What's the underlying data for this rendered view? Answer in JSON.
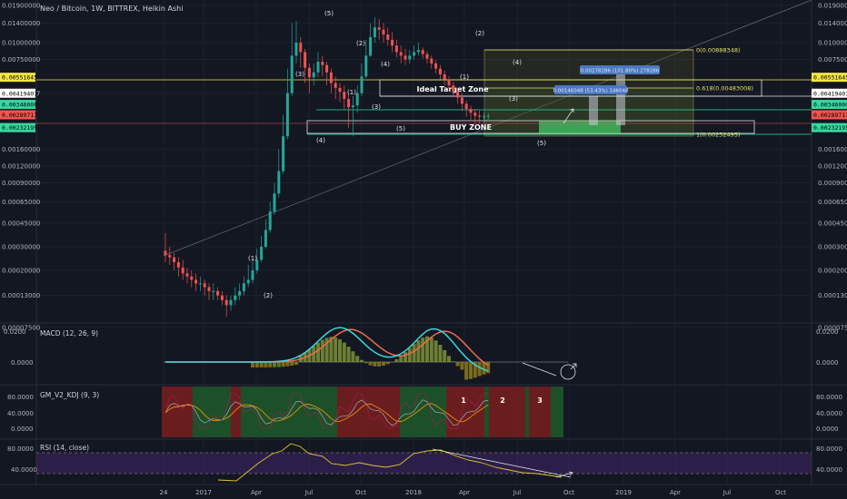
{
  "title": "Neo / Bitcoin, 1W, BITTREX, Heikin Ashi",
  "main_axis": {
    "left_ticks": [
      "0.01900000",
      "0.01400000",
      "0.01000000",
      "0.00750000",
      "0.00419407",
      "0.00160000",
      "0.00120000",
      "0.00090000",
      "0.00065000",
      "0.00045000",
      "0.00030000",
      "0.00020000",
      "0.00013000",
      "0.00007500"
    ],
    "right_ticks": [
      "0.01900000",
      "0.01400000",
      "0.01000000",
      "0.00750000",
      "0.00419407",
      "0.00160000",
      "0.00120000",
      "0.00090000",
      "0.00065000",
      "0.00045000",
      "0.00030000",
      "0.00020000",
      "0.00013000",
      "0.00007500"
    ],
    "scale": "log"
  },
  "price_badges": [
    {
      "label": "0.00551645",
      "color": "#f5e642",
      "text_color": "#000000",
      "price": 0.00551645
    },
    {
      "label": "0.00419407",
      "color": "#ffffff",
      "text_color": "#000000",
      "price": 0.00419407
    },
    {
      "label": "0.00346000",
      "color": "#37d8a0",
      "text_color": "#000000",
      "price": 0.00346
    },
    {
      "label": "0.00289717",
      "color": "#f0554a",
      "text_color": "#000000",
      "price": 0.00289717
    },
    {
      "label": "0.00232195",
      "color": "#37d8a0",
      "text_color": "#000000",
      "price": 0.00232195
    }
  ],
  "fib_labels": {
    "top": "0(0.00888348)",
    "mid": "0.618(0.00483008)",
    "bottom": "1(0.00232495)"
  },
  "zones": {
    "target": "Ideal Target Zone",
    "buy": "BUY ZONE"
  },
  "measure_boxes": {
    "upper": "0.00278286 (101.80%) 278286",
    "lower": "0.00146048 (53.43%) 146048"
  },
  "waves": [
    "(5)",
    "(3)",
    "(2)",
    "(4)",
    "(1)",
    "(3)",
    "(4)",
    "(5)",
    "(2)",
    "(1)",
    "(4)",
    "(3)",
    "(5)",
    "(1)",
    "(2)"
  ],
  "macd": {
    "title": "MACD (12, 26, 9)",
    "ticks": [
      "0.0200",
      "0.0000"
    ]
  },
  "kdj": {
    "title": "GM_V2_KDJ (9, 3)",
    "ticks": [
      "80.0000",
      "40.0000",
      "0.0000"
    ],
    "markers": [
      "1",
      "2",
      "3"
    ]
  },
  "rsi": {
    "title": "RSI (14, close)",
    "ticks": [
      "80.0000",
      "40.0000"
    ]
  },
  "time_axis": [
    "24",
    "2017",
    "Apr",
    "Jul",
    "Oct",
    "2018",
    "Apr",
    "Jul",
    "Oct",
    "2019",
    "Apr",
    "Jul",
    "Oct"
  ],
  "colors": {
    "background": "#131722",
    "up": "#26a69a",
    "down": "#ef5350",
    "grid": "#1e222d"
  },
  "chart_data": {
    "type": "candlestick",
    "title": "Neo / Bitcoin, 1W, BITTREX, Heikin Ashi",
    "y_scale": "log",
    "ylim": [
      7.5e-05,
      0.019
    ],
    "candles": [
      {
        "o": 0.00028,
        "c": 0.00026,
        "h": 0.00038,
        "l": 0.00023
      },
      {
        "o": 0.00026,
        "c": 0.00025,
        "h": 0.0003,
        "l": 0.00022
      },
      {
        "o": 0.00025,
        "c": 0.00023,
        "h": 0.00027,
        "l": 0.0002
      },
      {
        "o": 0.00023,
        "c": 0.00021,
        "h": 0.00025,
        "l": 0.00018
      },
      {
        "o": 0.00021,
        "c": 0.00019,
        "h": 0.00024,
        "l": 0.00017
      },
      {
        "o": 0.00019,
        "c": 0.00018,
        "h": 0.00021,
        "l": 0.00016
      },
      {
        "o": 0.00018,
        "c": 0.00017,
        "h": 0.0002,
        "l": 0.00015
      },
      {
        "o": 0.00017,
        "c": 0.00016,
        "h": 0.00019,
        "l": 0.00014
      },
      {
        "o": 0.00016,
        "c": 0.00016,
        "h": 0.00018,
        "l": 0.00014
      },
      {
        "o": 0.00016,
        "c": 0.00015,
        "h": 0.00017,
        "l": 0.00013
      },
      {
        "o": 0.00015,
        "c": 0.00014,
        "h": 0.00016,
        "l": 0.00012
      },
      {
        "o": 0.00014,
        "c": 0.00014,
        "h": 0.00016,
        "l": 0.00012
      },
      {
        "o": 0.00014,
        "c": 0.00013,
        "h": 0.00015,
        "l": 0.00012
      },
      {
        "o": 0.00013,
        "c": 0.00012,
        "h": 0.00014,
        "l": 0.00011
      },
      {
        "o": 0.00012,
        "c": 0.00011,
        "h": 0.00013,
        "l": 9e-05
      },
      {
        "o": 0.00011,
        "c": 0.00012,
        "h": 0.00013,
        "l": 0.0001
      },
      {
        "o": 0.00012,
        "c": 0.00013,
        "h": 0.00015,
        "l": 0.00011
      },
      {
        "o": 0.00013,
        "c": 0.00014,
        "h": 0.00016,
        "l": 0.00012
      },
      {
        "o": 0.00014,
        "c": 0.00016,
        "h": 0.00018,
        "l": 0.00013
      },
      {
        "o": 0.00016,
        "c": 0.00017,
        "h": 0.00022,
        "l": 0.00015
      },
      {
        "o": 0.00017,
        "c": 0.0002,
        "h": 0.00024,
        "l": 0.00016
      },
      {
        "o": 0.0002,
        "c": 0.00024,
        "h": 0.00029,
        "l": 0.00019
      },
      {
        "o": 0.00024,
        "c": 0.0003,
        "h": 0.00036,
        "l": 0.00023
      },
      {
        "o": 0.0003,
        "c": 0.0004,
        "h": 0.00048,
        "l": 0.00029
      },
      {
        "o": 0.0004,
        "c": 0.00055,
        "h": 0.00065,
        "l": 0.00038
      },
      {
        "o": 0.00055,
        "c": 0.00075,
        "h": 0.0009,
        "l": 0.00052
      },
      {
        "o": 0.00075,
        "c": 0.0011,
        "h": 0.0016,
        "l": 0.0007
      },
      {
        "o": 0.0011,
        "c": 0.002,
        "h": 0.0029,
        "l": 0.00105
      },
      {
        "o": 0.002,
        "c": 0.0042,
        "h": 0.0064,
        "l": 0.0019
      },
      {
        "o": 0.0042,
        "c": 0.008,
        "h": 0.014,
        "l": 0.004
      },
      {
        "o": 0.008,
        "c": 0.01,
        "h": 0.0145,
        "l": 0.007
      },
      {
        "o": 0.01,
        "c": 0.0085,
        "h": 0.011,
        "l": 0.0065
      },
      {
        "o": 0.0085,
        "c": 0.0065,
        "h": 0.009,
        "l": 0.005
      },
      {
        "o": 0.0065,
        "c": 0.0055,
        "h": 0.007,
        "l": 0.0042
      },
      {
        "o": 0.0055,
        "c": 0.006,
        "h": 0.007,
        "l": 0.0048
      },
      {
        "o": 0.006,
        "c": 0.0072,
        "h": 0.0085,
        "l": 0.0055
      },
      {
        "o": 0.0072,
        "c": 0.0068,
        "h": 0.008,
        "l": 0.0056
      },
      {
        "o": 0.0068,
        "c": 0.006,
        "h": 0.0072,
        "l": 0.0048
      },
      {
        "o": 0.006,
        "c": 0.005,
        "h": 0.0064,
        "l": 0.0042
      },
      {
        "o": 0.005,
        "c": 0.0046,
        "h": 0.0056,
        "l": 0.0038
      },
      {
        "o": 0.0046,
        "c": 0.0043,
        "h": 0.005,
        "l": 0.0036
      },
      {
        "o": 0.0043,
        "c": 0.0038,
        "h": 0.0048,
        "l": 0.0032
      },
      {
        "o": 0.0038,
        "c": 0.0033,
        "h": 0.0042,
        "l": 0.0023
      },
      {
        "o": 0.0033,
        "c": 0.0034,
        "h": 0.004,
        "l": 0.002
      },
      {
        "o": 0.0034,
        "c": 0.0042,
        "h": 0.0048,
        "l": 0.003
      },
      {
        "o": 0.0042,
        "c": 0.0056,
        "h": 0.007,
        "l": 0.004
      },
      {
        "o": 0.0056,
        "c": 0.008,
        "h": 0.0105,
        "l": 0.0054
      },
      {
        "o": 0.008,
        "c": 0.011,
        "h": 0.014,
        "l": 0.0078
      },
      {
        "o": 0.011,
        "c": 0.013,
        "h": 0.0155,
        "l": 0.01
      },
      {
        "o": 0.013,
        "c": 0.0125,
        "h": 0.015,
        "l": 0.0105
      },
      {
        "o": 0.0125,
        "c": 0.0115,
        "h": 0.014,
        "l": 0.01
      },
      {
        "o": 0.0115,
        "c": 0.0105,
        "h": 0.013,
        "l": 0.0095
      },
      {
        "o": 0.0105,
        "c": 0.0095,
        "h": 0.012,
        "l": 0.0085
      },
      {
        "o": 0.0095,
        "c": 0.0085,
        "h": 0.0105,
        "l": 0.0078
      },
      {
        "o": 0.0085,
        "c": 0.008,
        "h": 0.0095,
        "l": 0.007
      },
      {
        "o": 0.008,
        "c": 0.0075,
        "h": 0.009,
        "l": 0.0068
      },
      {
        "o": 0.0075,
        "c": 0.008,
        "h": 0.0088,
        "l": 0.007
      },
      {
        "o": 0.008,
        "c": 0.0085,
        "h": 0.0095,
        "l": 0.0075
      },
      {
        "o": 0.0085,
        "c": 0.0088,
        "h": 0.01,
        "l": 0.008
      },
      {
        "o": 0.0088,
        "c": 0.0082,
        "h": 0.0092,
        "l": 0.0076
      },
      {
        "o": 0.0082,
        "c": 0.0076,
        "h": 0.0086,
        "l": 0.007
      },
      {
        "o": 0.0076,
        "c": 0.007,
        "h": 0.008,
        "l": 0.0064
      },
      {
        "o": 0.007,
        "c": 0.0064,
        "h": 0.0074,
        "l": 0.0059
      },
      {
        "o": 0.0064,
        "c": 0.0058,
        "h": 0.0068,
        "l": 0.0053
      },
      {
        "o": 0.0058,
        "c": 0.0053,
        "h": 0.0062,
        "l": 0.0048
      },
      {
        "o": 0.0053,
        "c": 0.0048,
        "h": 0.0056,
        "l": 0.0044
      },
      {
        "o": 0.0048,
        "c": 0.0043,
        "h": 0.0051,
        "l": 0.0039
      },
      {
        "o": 0.0043,
        "c": 0.0039,
        "h": 0.0046,
        "l": 0.0035
      },
      {
        "o": 0.0039,
        "c": 0.0035,
        "h": 0.0042,
        "l": 0.0031
      },
      {
        "o": 0.0035,
        "c": 0.0032,
        "h": 0.0037,
        "l": 0.0028
      },
      {
        "o": 0.0032,
        "c": 0.003,
        "h": 0.0034,
        "l": 0.0026
      },
      {
        "o": 0.003,
        "c": 0.00285,
        "h": 0.0032,
        "l": 0.0025
      },
      {
        "o": 0.00285,
        "c": 0.0028,
        "h": 0.0031,
        "l": 0.0025
      },
      {
        "o": 0.0028,
        "c": 0.00282,
        "h": 0.003,
        "l": 0.00255
      },
      {
        "o": 0.00282,
        "c": 0.00285,
        "h": 0.003,
        "l": 0.0026
      }
    ]
  }
}
